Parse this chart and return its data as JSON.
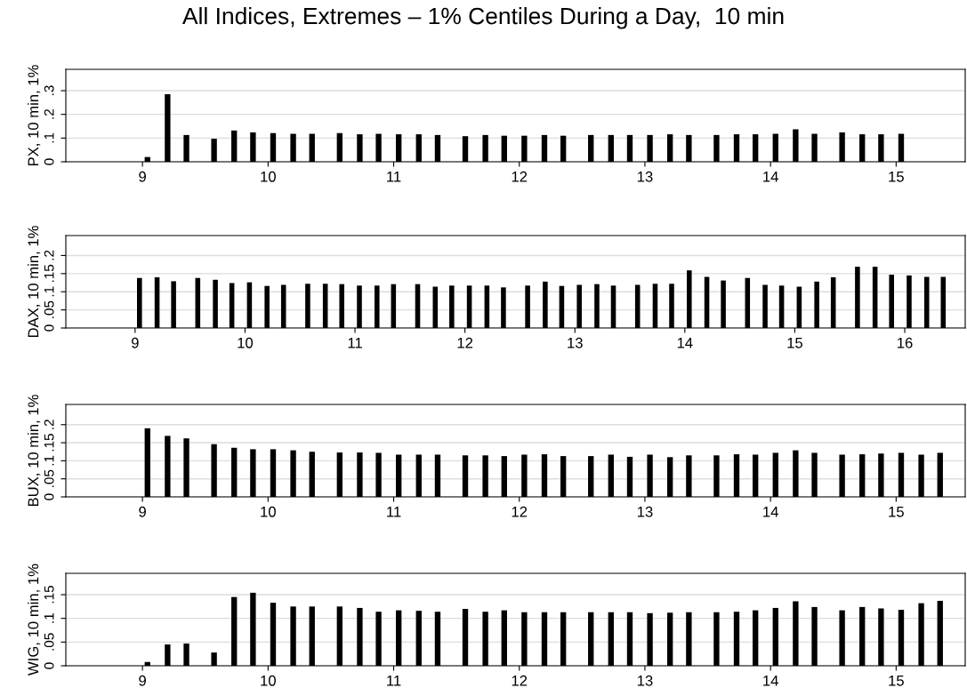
{
  "chart_data": [
    {
      "type": "bar",
      "title": "All Indices, Extremes – 1% Centiles During a Day,  10 min",
      "ylabel": "PX, 10 min, 1%",
      "x": [
        9.04,
        9.2,
        9.35,
        9.57,
        9.73,
        9.88,
        10.04,
        10.2,
        10.35,
        10.57,
        10.73,
        10.88,
        11.04,
        11.2,
        11.35,
        11.57,
        11.73,
        11.88,
        12.04,
        12.2,
        12.35,
        12.57,
        12.73,
        12.88,
        13.04,
        13.2,
        13.35,
        13.57,
        13.73,
        13.88,
        14.04,
        14.2,
        14.35,
        14.57,
        14.73,
        14.88,
        15.04
      ],
      "series": [
        {
          "color": "#000000",
          "values": [
            0.02,
            0.285,
            0.113,
            0.097,
            0.132,
            0.124,
            0.121,
            0.118,
            0.118,
            0.121,
            0.116,
            0.118,
            0.116,
            0.116,
            0.113,
            0.108,
            0.113,
            0.11,
            0.11,
            0.113,
            0.11,
            0.113,
            0.113,
            0.113,
            0.113,
            0.116,
            0.113,
            0.113,
            0.116,
            0.116,
            0.118,
            0.137,
            0.118,
            0.124,
            0.116,
            0.116,
            0.118
          ]
        }
      ],
      "xlim": [
        8.39,
        15.55
      ],
      "xticks": [
        9,
        10,
        11,
        12,
        13,
        14,
        15
      ],
      "ylim": [
        0,
        0.39
      ],
      "yticks": [
        0,
        {
          "value": 0.1,
          "label": ".1"
        },
        {
          "value": 0.2,
          "label": ".2"
        },
        {
          "value": 0.3,
          "label": ".3"
        }
      ],
      "grid": "y"
    },
    {
      "type": "bar",
      "ylabel": "DAX, 10 min, 1%",
      "x": [
        9.04,
        9.2,
        9.35,
        9.57,
        9.73,
        9.88,
        10.04,
        10.2,
        10.35,
        10.57,
        10.73,
        10.88,
        11.04,
        11.2,
        11.35,
        11.57,
        11.73,
        11.88,
        12.04,
        12.2,
        12.35,
        12.57,
        12.73,
        12.88,
        13.04,
        13.2,
        13.35,
        13.57,
        13.73,
        13.88,
        14.04,
        14.2,
        14.35,
        14.57,
        14.73,
        14.88,
        15.04,
        15.2,
        15.35,
        15.57,
        15.73,
        15.88,
        16.04,
        16.2,
        16.35
      ],
      "series": [
        {
          "color": "#000000",
          "values": [
            0.138,
            0.14,
            0.129,
            0.138,
            0.133,
            0.124,
            0.126,
            0.116,
            0.119,
            0.122,
            0.122,
            0.121,
            0.117,
            0.117,
            0.121,
            0.121,
            0.114,
            0.117,
            0.117,
            0.117,
            0.112,
            0.117,
            0.128,
            0.116,
            0.119,
            0.121,
            0.117,
            0.119,
            0.122,
            0.122,
            0.159,
            0.141,
            0.131,
            0.138,
            0.119,
            0.117,
            0.114,
            0.128,
            0.14,
            0.169,
            0.169,
            0.147,
            0.145,
            0.141,
            0.141
          ]
        }
      ],
      "xlim": [
        8.37,
        16.55
      ],
      "xticks": [
        9,
        10,
        11,
        12,
        13,
        14,
        15,
        16
      ],
      "ylim": [
        0,
        0.255
      ],
      "yticks": [
        0,
        {
          "value": 0.05,
          "label": ".05"
        },
        {
          "value": 0.1,
          "label": ".1"
        },
        {
          "value": 0.15,
          "label": ".15"
        },
        {
          "value": 0.2,
          "label": ".2"
        }
      ],
      "grid": "y"
    },
    {
      "type": "bar",
      "ylabel": "BUX, 10 min, 1%",
      "x": [
        9.04,
        9.2,
        9.35,
        9.57,
        9.73,
        9.88,
        10.04,
        10.2,
        10.35,
        10.57,
        10.73,
        10.88,
        11.04,
        11.2,
        11.35,
        11.57,
        11.73,
        11.88,
        12.04,
        12.2,
        12.35,
        12.57,
        12.73,
        12.88,
        13.04,
        13.2,
        13.35,
        13.57,
        13.73,
        13.88,
        14.04,
        14.2,
        14.35,
        14.57,
        14.73,
        14.88,
        15.04,
        15.2,
        15.35
      ],
      "series": [
        {
          "color": "#000000",
          "values": [
            0.19,
            0.169,
            0.162,
            0.146,
            0.136,
            0.132,
            0.132,
            0.129,
            0.125,
            0.123,
            0.123,
            0.122,
            0.117,
            0.117,
            0.117,
            0.115,
            0.115,
            0.113,
            0.117,
            0.118,
            0.113,
            0.113,
            0.117,
            0.111,
            0.117,
            0.11,
            0.115,
            0.115,
            0.118,
            0.117,
            0.122,
            0.129,
            0.122,
            0.117,
            0.118,
            0.12,
            0.122,
            0.117,
            0.122
          ]
        }
      ],
      "xlim": [
        8.39,
        15.55
      ],
      "xticks": [
        9,
        10,
        11,
        12,
        13,
        14,
        15
      ],
      "ylim": [
        0,
        0.256
      ],
      "yticks": [
        0,
        {
          "value": 0.05,
          "label": ".05"
        },
        {
          "value": 0.1,
          "label": ".1"
        },
        {
          "value": 0.15,
          "label": ".15"
        },
        {
          "value": 0.2,
          "label": ".2"
        }
      ],
      "grid": "y"
    },
    {
      "type": "bar",
      "ylabel": "WIG, 10 min, 1%",
      "x": [
        9.04,
        9.2,
        9.35,
        9.57,
        9.73,
        9.88,
        10.04,
        10.2,
        10.35,
        10.57,
        10.73,
        10.88,
        11.04,
        11.2,
        11.35,
        11.57,
        11.73,
        11.88,
        12.04,
        12.2,
        12.35,
        12.57,
        12.73,
        12.88,
        13.04,
        13.2,
        13.35,
        13.57,
        13.73,
        13.88,
        14.04,
        14.2,
        14.35,
        14.57,
        14.73,
        14.88,
        15.04,
        15.2,
        15.35
      ],
      "series": [
        {
          "color": "#000000",
          "values": [
            0.008,
            0.045,
            0.047,
            0.028,
            0.145,
            0.154,
            0.133,
            0.125,
            0.125,
            0.125,
            0.122,
            0.114,
            0.117,
            0.116,
            0.114,
            0.12,
            0.114,
            0.117,
            0.113,
            0.113,
            0.113,
            0.113,
            0.113,
            0.113,
            0.111,
            0.112,
            0.113,
            0.113,
            0.114,
            0.117,
            0.122,
            0.136,
            0.124,
            0.117,
            0.124,
            0.121,
            0.118,
            0.132,
            0.137
          ]
        }
      ],
      "xlim": [
        8.39,
        15.55
      ],
      "xticks": [
        9,
        10,
        11,
        12,
        13,
        14,
        15
      ],
      "ylim": [
        0,
        0.195
      ],
      "yticks": [
        0,
        {
          "value": 0.05,
          "label": ".05"
        },
        {
          "value": 0.1,
          "label": ".1"
        },
        {
          "value": 0.15,
          "label": ".15"
        }
      ],
      "grid": "y"
    }
  ]
}
